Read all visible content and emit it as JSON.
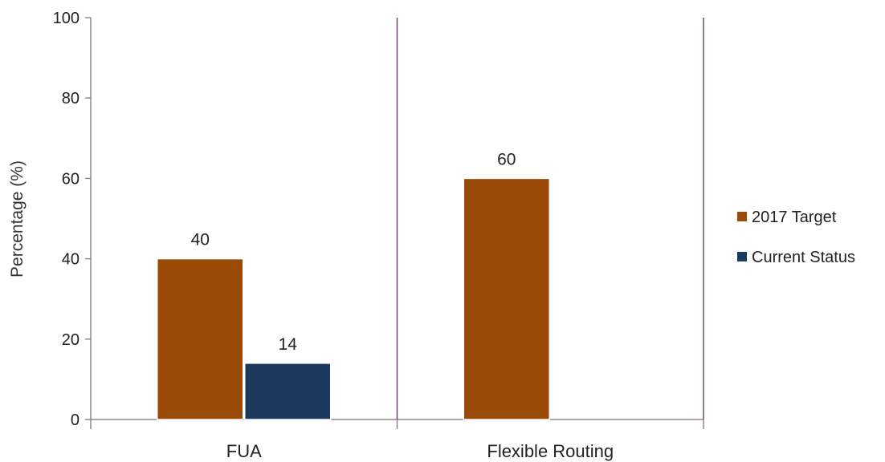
{
  "chart_data": {
    "type": "bar",
    "title": "",
    "xlabel": "",
    "ylabel": "Percentage (%)",
    "ylim": [
      0,
      100
    ],
    "yticks": [
      0,
      20,
      40,
      60,
      80,
      100
    ],
    "grid": false,
    "legend_position": "right",
    "categories": [
      "FUA",
      "Flexible Routing"
    ],
    "series": [
      {
        "name": "2017 Target",
        "color": "#9a4a07",
        "values": [
          40,
          60
        ]
      },
      {
        "name": "Current Status",
        "color": "#1b3a5e",
        "values": [
          14,
          null
        ]
      }
    ],
    "data_labels": [
      [
        "40",
        "60"
      ],
      [
        "14",
        ""
      ]
    ],
    "axis_color": "#8a8a8a",
    "divider_color": "#6b4f6b"
  }
}
